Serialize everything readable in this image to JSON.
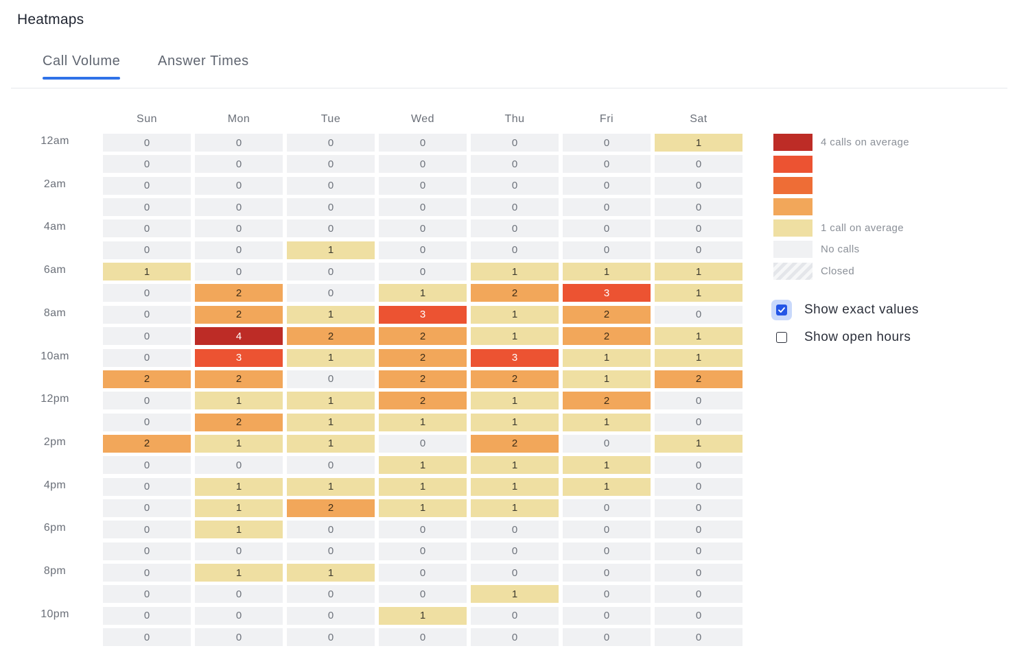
{
  "page": {
    "title": "Heatmaps"
  },
  "tabs": [
    {
      "label": "Call Volume",
      "active": true
    },
    {
      "label": "Answer Times",
      "active": false
    }
  ],
  "chart_data": {
    "type": "heatmap",
    "title": "Call Volume",
    "days": [
      "Sun",
      "Mon",
      "Tue",
      "Wed",
      "Thu",
      "Fri",
      "Sat"
    ],
    "hour_labels": [
      "12am",
      "",
      "2am",
      "",
      "4am",
      "",
      "6am",
      "",
      "8am",
      "",
      "10am",
      "",
      "12pm",
      "",
      "2pm",
      "",
      "4pm",
      "",
      "6pm",
      "",
      "8pm",
      "",
      "10pm",
      ""
    ],
    "values": [
      [
        0,
        0,
        0,
        0,
        0,
        0,
        1
      ],
      [
        0,
        0,
        0,
        0,
        0,
        0,
        0
      ],
      [
        0,
        0,
        0,
        0,
        0,
        0,
        0
      ],
      [
        0,
        0,
        0,
        0,
        0,
        0,
        0
      ],
      [
        0,
        0,
        0,
        0,
        0,
        0,
        0
      ],
      [
        0,
        0,
        1,
        0,
        0,
        0,
        0
      ],
      [
        1,
        0,
        0,
        0,
        1,
        1,
        1
      ],
      [
        0,
        2,
        0,
        1,
        2,
        3,
        1
      ],
      [
        0,
        2,
        1,
        3,
        1,
        2,
        0
      ],
      [
        0,
        4,
        2,
        2,
        1,
        2,
        1
      ],
      [
        0,
        3,
        1,
        2,
        3,
        1,
        1
      ],
      [
        2,
        2,
        0,
        2,
        2,
        1,
        2
      ],
      [
        0,
        1,
        1,
        2,
        1,
        2,
        0
      ],
      [
        0,
        2,
        1,
        1,
        1,
        1,
        0
      ],
      [
        2,
        1,
        1,
        0,
        2,
        0,
        1
      ],
      [
        0,
        0,
        0,
        1,
        1,
        1,
        0
      ],
      [
        0,
        1,
        1,
        1,
        1,
        1,
        0
      ],
      [
        0,
        1,
        2,
        1,
        1,
        0,
        0
      ],
      [
        0,
        1,
        0,
        0,
        0,
        0,
        0
      ],
      [
        0,
        0,
        0,
        0,
        0,
        0,
        0
      ],
      [
        0,
        1,
        1,
        0,
        0,
        0,
        0
      ],
      [
        0,
        0,
        0,
        0,
        1,
        0,
        0
      ],
      [
        0,
        0,
        0,
        1,
        0,
        0,
        0
      ],
      [
        0,
        0,
        0,
        0,
        0,
        0,
        0
      ]
    ],
    "color_scale": {
      "0": "#f0f1f3",
      "1": "#efdfa2",
      "2": "#f2a75a",
      "3": "#ec5332",
      "4": "#bd2c26"
    }
  },
  "legend": {
    "items": [
      {
        "color": "#bd2c26",
        "label": "4 calls on average"
      },
      {
        "color": "#ec5332",
        "label": ""
      },
      {
        "color": "#ee6d36",
        "label": ""
      },
      {
        "color": "#f2a75a",
        "label": ""
      },
      {
        "color": "#efdfa2",
        "label": "1 call on average"
      },
      {
        "color": "#f0f1f3",
        "label": "No calls"
      },
      {
        "color": "closed-hatch",
        "label": "Closed"
      }
    ]
  },
  "options": {
    "show_exact_values": {
      "label": "Show exact values",
      "checked": true
    },
    "show_open_hours": {
      "label": "Show open hours",
      "checked": false
    }
  }
}
